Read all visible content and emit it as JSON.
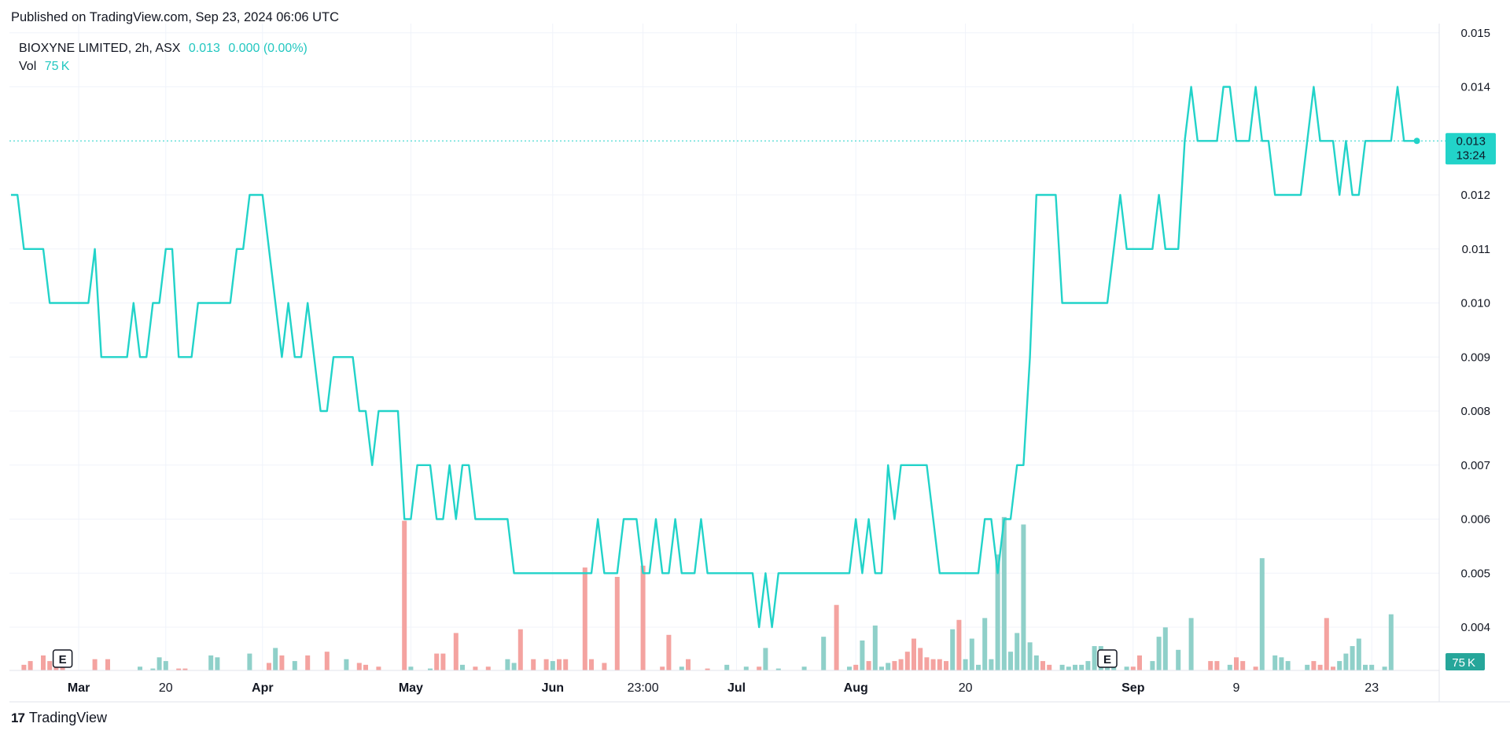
{
  "header": {
    "published": "Published on TradingView.com, Sep 23, 2024 06:06 UTC"
  },
  "legend": {
    "symbol": "BIOXYNE LIMITED, 2h, ASX",
    "price": "0.013",
    "change": "0.000 (0.00%)",
    "vol_label": "Vol",
    "vol_value": "75 K"
  },
  "footer": {
    "brand": "TradingView",
    "logo": "17"
  },
  "colors": {
    "line": "#22d3c9",
    "up_volume": "#8fd0c9",
    "down_volume": "#f4a3a0",
    "grid": "#f0f3fa",
    "axis_text": "#131722",
    "price_tag_bg": "#22d3c9",
    "volume_tag_bg": "#26a69a"
  },
  "chart_data": {
    "type": "line",
    "title": "BIOXYNE LIMITED, 2h, ASX",
    "ylim": [
      0.0032,
      0.0152
    ],
    "y_ticks": [
      "0.015",
      "0.014",
      "0.012",
      "0.011",
      "0.010",
      "0.009",
      "0.008",
      "0.007",
      "0.006",
      "0.005",
      "0.004"
    ],
    "x_ticks": [
      {
        "label": "Mar",
        "bold": true,
        "i": 10.5
      },
      {
        "label": "20",
        "bold": false,
        "i": 24
      },
      {
        "label": "Apr",
        "bold": true,
        "i": 39
      },
      {
        "label": "May",
        "bold": true,
        "i": 62
      },
      {
        "label": "Jun",
        "bold": true,
        "i": 84
      },
      {
        "label": "23:00",
        "bold": false,
        "i": 98
      },
      {
        "label": "Jul",
        "bold": true,
        "i": 112.5
      },
      {
        "label": "Aug",
        "bold": true,
        "i": 131
      },
      {
        "label": "20",
        "bold": false,
        "i": 148
      },
      {
        "label": "Sep",
        "bold": true,
        "i": 174
      },
      {
        "label": "9",
        "bold": false,
        "i": 190
      },
      {
        "label": "23",
        "bold": false,
        "i": 211
      }
    ],
    "price_label": "0.013",
    "countdown": "13:24",
    "volume_label": "75 K",
    "earnings_markers": [
      {
        "label": "E",
        "i": 8
      },
      {
        "label": "E",
        "i": 170
      }
    ],
    "series": [
      {
        "values": [
          0.012,
          0.012,
          0.011,
          0.011,
          0.011,
          0.011,
          0.01,
          0.01,
          0.01,
          0.01,
          0.01,
          0.01,
          0.01,
          0.011,
          0.009,
          0.009,
          0.009,
          0.009,
          0.009,
          0.01,
          0.009,
          0.009,
          0.01,
          0.01,
          0.011,
          0.011,
          0.009,
          0.009,
          0.009,
          0.01,
          0.01,
          0.01,
          0.01,
          0.01,
          0.01,
          0.011,
          0.011,
          0.012,
          0.012,
          0.012,
          0.011,
          0.01,
          0.009,
          0.01,
          0.009,
          0.009,
          0.01,
          0.009,
          0.008,
          0.008,
          0.009,
          0.009,
          0.009,
          0.009,
          0.008,
          0.008,
          0.007,
          0.008,
          0.008,
          0.008,
          0.008,
          0.006,
          0.006,
          0.007,
          0.007,
          0.007,
          0.006,
          0.006,
          0.007,
          0.006,
          0.007,
          0.007,
          0.006,
          0.006,
          0.006,
          0.006,
          0.006,
          0.006,
          0.005,
          0.005,
          0.005,
          0.005,
          0.005,
          0.005,
          0.005,
          0.005,
          0.005,
          0.005,
          0.005,
          0.005,
          0.005,
          0.006,
          0.005,
          0.005,
          0.005,
          0.006,
          0.006,
          0.006,
          0.005,
          0.005,
          0.006,
          0.005,
          0.005,
          0.006,
          0.005,
          0.005,
          0.005,
          0.006,
          0.005,
          0.005,
          0.005,
          0.005,
          0.005,
          0.005,
          0.005,
          0.005,
          0.004,
          0.005,
          0.004,
          0.005,
          0.005,
          0.005,
          0.005,
          0.005,
          0.005,
          0.005,
          0.005,
          0.005,
          0.005,
          0.005,
          0.005,
          0.006,
          0.005,
          0.006,
          0.005,
          0.005,
          0.007,
          0.006,
          0.007,
          0.007,
          0.007,
          0.007,
          0.007,
          0.006,
          0.005,
          0.005,
          0.005,
          0.005,
          0.005,
          0.005,
          0.005,
          0.006,
          0.006,
          0.005,
          0.006,
          0.006,
          0.007,
          0.007,
          0.009,
          0.012,
          0.012,
          0.012,
          0.012,
          0.01,
          0.01,
          0.01,
          0.01,
          0.01,
          0.01,
          0.01,
          0.01,
          0.011,
          0.012,
          0.011,
          0.011,
          0.011,
          0.011,
          0.011,
          0.012,
          0.011,
          0.011,
          0.011,
          0.013,
          0.014,
          0.013,
          0.013,
          0.013,
          0.013,
          0.014,
          0.014,
          0.013,
          0.013,
          0.013,
          0.014,
          0.013,
          0.013,
          0.012,
          0.012,
          0.012,
          0.012,
          0.012,
          0.013,
          0.014,
          0.013,
          0.013,
          0.013,
          0.012,
          0.013,
          0.012,
          0.012,
          0.013,
          0.013,
          0.013,
          0.013,
          0.013,
          0.014,
          0.013,
          0.013,
          0.013
        ]
      }
    ],
    "volume": [
      {
        "i": 2,
        "v": 3,
        "d": 1
      },
      {
        "i": 3,
        "v": 5,
        "d": 1
      },
      {
        "i": 5,
        "v": 8,
        "d": 1
      },
      {
        "i": 6,
        "v": 5,
        "d": 1
      },
      {
        "i": 7,
        "v": 3,
        "d": 1
      },
      {
        "i": 8,
        "v": 2,
        "d": 1
      },
      {
        "i": 13,
        "v": 6,
        "d": 1
      },
      {
        "i": 15,
        "v": 6,
        "d": 1
      },
      {
        "i": 20,
        "v": 2,
        "d": 0
      },
      {
        "i": 22,
        "v": 1,
        "d": 0
      },
      {
        "i": 23,
        "v": 7,
        "d": 0
      },
      {
        "i": 24,
        "v": 5,
        "d": 0
      },
      {
        "i": 26,
        "v": 1,
        "d": 1
      },
      {
        "i": 27,
        "v": 1,
        "d": 1
      },
      {
        "i": 31,
        "v": 8,
        "d": 0
      },
      {
        "i": 32,
        "v": 7,
        "d": 0
      },
      {
        "i": 37,
        "v": 9,
        "d": 0
      },
      {
        "i": 40,
        "v": 4,
        "d": 1
      },
      {
        "i": 41,
        "v": 12,
        "d": 0
      },
      {
        "i": 42,
        "v": 8,
        "d": 1
      },
      {
        "i": 44,
        "v": 5,
        "d": 0
      },
      {
        "i": 46,
        "v": 8,
        "d": 1
      },
      {
        "i": 49,
        "v": 10,
        "d": 1
      },
      {
        "i": 52,
        "v": 6,
        "d": 0
      },
      {
        "i": 54,
        "v": 4,
        "d": 1
      },
      {
        "i": 55,
        "v": 3,
        "d": 1
      },
      {
        "i": 57,
        "v": 2,
        "d": 1
      },
      {
        "i": 61,
        "v": 80,
        "d": 1
      },
      {
        "i": 62,
        "v": 2,
        "d": 0
      },
      {
        "i": 65,
        "v": 1,
        "d": 0
      },
      {
        "i": 66,
        "v": 9,
        "d": 1
      },
      {
        "i": 67,
        "v": 9,
        "d": 1
      },
      {
        "i": 69,
        "v": 20,
        "d": 1
      },
      {
        "i": 70,
        "v": 3,
        "d": 0
      },
      {
        "i": 72,
        "v": 2,
        "d": 1
      },
      {
        "i": 74,
        "v": 2,
        "d": 1
      },
      {
        "i": 77,
        "v": 6,
        "d": 0
      },
      {
        "i": 78,
        "v": 4,
        "d": 0
      },
      {
        "i": 79,
        "v": 22,
        "d": 1
      },
      {
        "i": 81,
        "v": 6,
        "d": 1
      },
      {
        "i": 83,
        "v": 6,
        "d": 1
      },
      {
        "i": 84,
        "v": 5,
        "d": 0
      },
      {
        "i": 85,
        "v": 6,
        "d": 1
      },
      {
        "i": 86,
        "v": 6,
        "d": 1
      },
      {
        "i": 89,
        "v": 55,
        "d": 1
      },
      {
        "i": 90,
        "v": 6,
        "d": 1
      },
      {
        "i": 92,
        "v": 4,
        "d": 1
      },
      {
        "i": 94,
        "v": 50,
        "d": 1
      },
      {
        "i": 98,
        "v": 56,
        "d": 1
      },
      {
        "i": 101,
        "v": 2,
        "d": 1
      },
      {
        "i": 102,
        "v": 19,
        "d": 1
      },
      {
        "i": 104,
        "v": 2,
        "d": 0
      },
      {
        "i": 105,
        "v": 6,
        "d": 1
      },
      {
        "i": 108,
        "v": 1,
        "d": 1
      },
      {
        "i": 111,
        "v": 3,
        "d": 0
      },
      {
        "i": 114,
        "v": 2,
        "d": 0
      },
      {
        "i": 116,
        "v": 2,
        "d": 1
      },
      {
        "i": 117,
        "v": 12,
        "d": 0
      },
      {
        "i": 119,
        "v": 1,
        "d": 0
      },
      {
        "i": 123,
        "v": 2,
        "d": 0
      },
      {
        "i": 126,
        "v": 18,
        "d": 0
      },
      {
        "i": 128,
        "v": 35,
        "d": 1
      },
      {
        "i": 130,
        "v": 2,
        "d": 0
      },
      {
        "i": 131,
        "v": 3,
        "d": 1
      },
      {
        "i": 132,
        "v": 16,
        "d": 0
      },
      {
        "i": 133,
        "v": 5,
        "d": 1
      },
      {
        "i": 134,
        "v": 24,
        "d": 0
      },
      {
        "i": 135,
        "v": 2,
        "d": 0
      },
      {
        "i": 136,
        "v": 4,
        "d": 0
      },
      {
        "i": 137,
        "v": 5,
        "d": 1
      },
      {
        "i": 138,
        "v": 6,
        "d": 1
      },
      {
        "i": 139,
        "v": 10,
        "d": 1
      },
      {
        "i": 140,
        "v": 17,
        "d": 1
      },
      {
        "i": 141,
        "v": 12,
        "d": 1
      },
      {
        "i": 142,
        "v": 7,
        "d": 1
      },
      {
        "i": 143,
        "v": 6,
        "d": 1
      },
      {
        "i": 144,
        "v": 6,
        "d": 1
      },
      {
        "i": 145,
        "v": 5,
        "d": 1
      },
      {
        "i": 146,
        "v": 22,
        "d": 0
      },
      {
        "i": 147,
        "v": 27,
        "d": 1
      },
      {
        "i": 148,
        "v": 6,
        "d": 0
      },
      {
        "i": 149,
        "v": 17,
        "d": 0
      },
      {
        "i": 150,
        "v": 3,
        "d": 0
      },
      {
        "i": 151,
        "v": 28,
        "d": 0
      },
      {
        "i": 152,
        "v": 6,
        "d": 0
      },
      {
        "i": 153,
        "v": 62,
        "d": 0
      },
      {
        "i": 154,
        "v": 82,
        "d": 0
      },
      {
        "i": 155,
        "v": 10,
        "d": 0
      },
      {
        "i": 156,
        "v": 20,
        "d": 0
      },
      {
        "i": 157,
        "v": 78,
        "d": 0
      },
      {
        "i": 158,
        "v": 15,
        "d": 0
      },
      {
        "i": 159,
        "v": 8,
        "d": 0
      },
      {
        "i": 160,
        "v": 5,
        "d": 1
      },
      {
        "i": 161,
        "v": 3,
        "d": 1
      },
      {
        "i": 163,
        "v": 3,
        "d": 0
      },
      {
        "i": 164,
        "v": 2,
        "d": 0
      },
      {
        "i": 165,
        "v": 3,
        "d": 0
      },
      {
        "i": 166,
        "v": 3,
        "d": 0
      },
      {
        "i": 167,
        "v": 5,
        "d": 0
      },
      {
        "i": 168,
        "v": 13,
        "d": 0
      },
      {
        "i": 169,
        "v": 13,
        "d": 0
      },
      {
        "i": 170,
        "v": 3,
        "d": 0
      },
      {
        "i": 171,
        "v": 6,
        "d": 0
      },
      {
        "i": 173,
        "v": 2,
        "d": 0
      },
      {
        "i": 174,
        "v": 2,
        "d": 1
      },
      {
        "i": 175,
        "v": 8,
        "d": 1
      },
      {
        "i": 177,
        "v": 5,
        "d": 0
      },
      {
        "i": 178,
        "v": 18,
        "d": 0
      },
      {
        "i": 179,
        "v": 23,
        "d": 0
      },
      {
        "i": 181,
        "v": 11,
        "d": 0
      },
      {
        "i": 183,
        "v": 28,
        "d": 0
      },
      {
        "i": 186,
        "v": 5,
        "d": 1
      },
      {
        "i": 187,
        "v": 5,
        "d": 1
      },
      {
        "i": 189,
        "v": 3,
        "d": 0
      },
      {
        "i": 190,
        "v": 7,
        "d": 1
      },
      {
        "i": 191,
        "v": 5,
        "d": 1
      },
      {
        "i": 193,
        "v": 2,
        "d": 1
      },
      {
        "i": 194,
        "v": 60,
        "d": 0
      },
      {
        "i": 196,
        "v": 8,
        "d": 0
      },
      {
        "i": 197,
        "v": 7,
        "d": 0
      },
      {
        "i": 198,
        "v": 5,
        "d": 0
      },
      {
        "i": 201,
        "v": 3,
        "d": 0
      },
      {
        "i": 202,
        "v": 5,
        "d": 1
      },
      {
        "i": 203,
        "v": 3,
        "d": 1
      },
      {
        "i": 204,
        "v": 28,
        "d": 1
      },
      {
        "i": 205,
        "v": 2,
        "d": 1
      },
      {
        "i": 206,
        "v": 5,
        "d": 0
      },
      {
        "i": 207,
        "v": 9,
        "d": 0
      },
      {
        "i": 208,
        "v": 13,
        "d": 0
      },
      {
        "i": 209,
        "v": 17,
        "d": 0
      },
      {
        "i": 210,
        "v": 3,
        "d": 0
      },
      {
        "i": 211,
        "v": 3,
        "d": 0
      },
      {
        "i": 213,
        "v": 2,
        "d": 0
      },
      {
        "i": 214,
        "v": 30,
        "d": 0
      }
    ]
  }
}
